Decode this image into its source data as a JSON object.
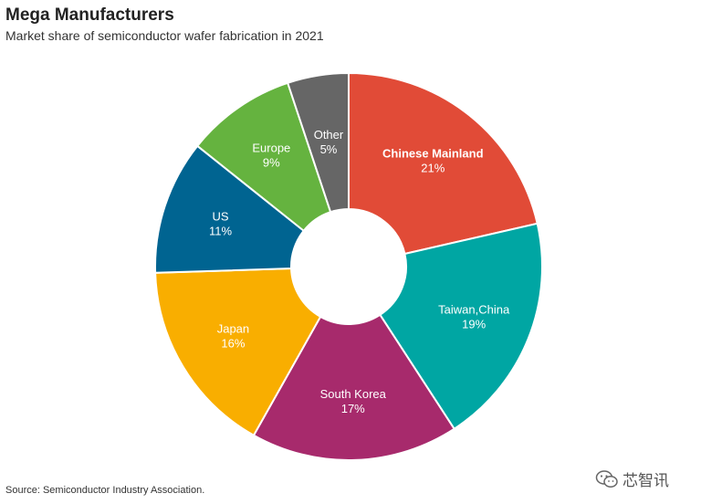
{
  "header": {
    "title": "Mega Manufacturers",
    "subtitle": "Market share of semiconductor wafer fabrication in 2021"
  },
  "footer": {
    "source": "Source: Semiconductor Industry Association."
  },
  "watermark": {
    "text": "芯智讯",
    "icon": "wechat-icon"
  },
  "chart_data": {
    "type": "pie",
    "title": "Mega Manufacturers",
    "subtitle": "Market share of semiconductor wafer fabrication in 2021",
    "donut": true,
    "slices": [
      {
        "label": "Chinese Mainland",
        "value": 21,
        "value_label": "21%",
        "color": "#E14B37",
        "bold_label": true
      },
      {
        "label": "Taiwan,China",
        "value": 19,
        "value_label": "19%",
        "color": "#00A6A3"
      },
      {
        "label": "South Korea",
        "value": 17,
        "value_label": "17%",
        "color": "#A72A6C"
      },
      {
        "label": "Japan",
        "value": 16,
        "value_label": "16%",
        "color": "#F9AE00"
      },
      {
        "label": "US",
        "value": 11,
        "value_label": "11%",
        "color": "#006491"
      },
      {
        "label": "Europe",
        "value": 9,
        "value_label": "9%",
        "color": "#65B33F"
      },
      {
        "label": "Other",
        "value": 5,
        "value_label": "5%",
        "color": "#666666"
      }
    ]
  }
}
